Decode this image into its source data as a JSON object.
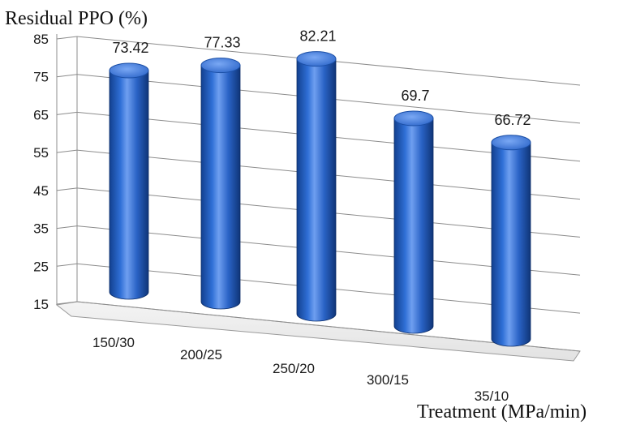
{
  "chart_data": {
    "type": "bar",
    "style": "3d-cylinder",
    "title": "",
    "ylabel": "Residual PPO (%)",
    "xlabel": "Treatment (MPa/min)",
    "categories": [
      "150/30",
      "200/25",
      "250/20",
      "300/15",
      "35/10"
    ],
    "values": [
      73.42,
      77.33,
      82.21,
      69.7,
      66.72
    ],
    "data_labels": [
      "73.42",
      "77.33",
      "82.21",
      "69.7",
      "66.72"
    ],
    "yticks": [
      15,
      25,
      35,
      45,
      55,
      65,
      75,
      85
    ],
    "ylim": [
      15,
      85
    ],
    "grid": true,
    "legend": "none",
    "bar_color": "#1f5fc0",
    "bar_highlight": "#6f9ff0",
    "bar_shadow": "#0d2f6b"
  }
}
